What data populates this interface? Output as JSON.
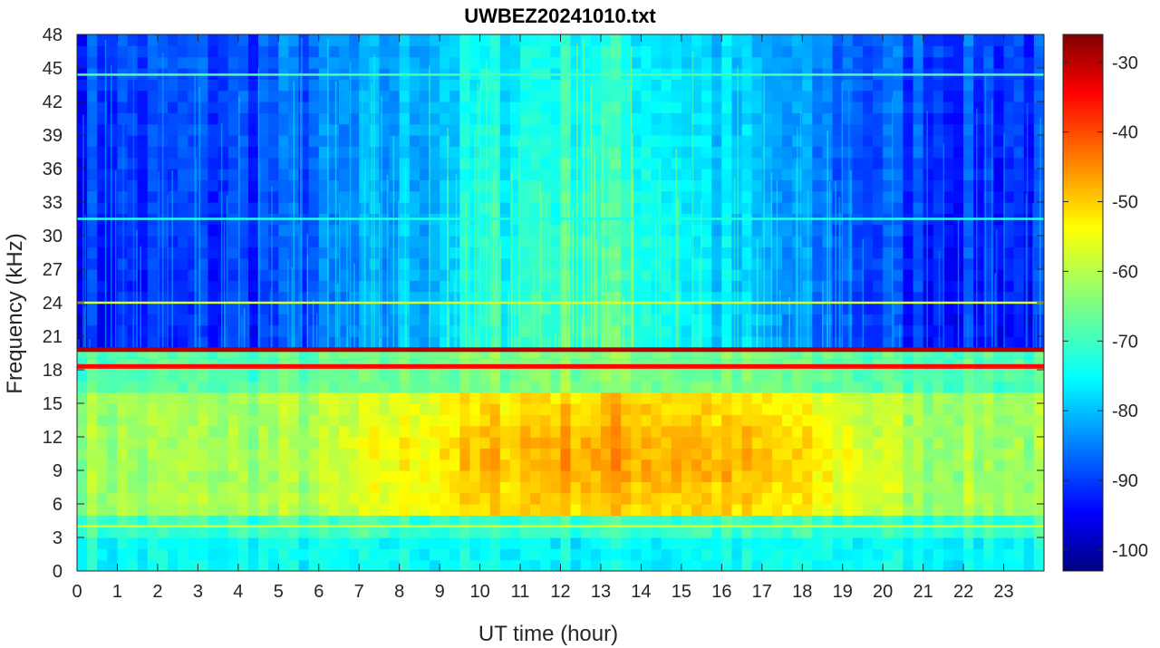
{
  "chart_data": {
    "type": "heatmap",
    "title": "UWBEZ20241010.txt",
    "xlabel": "UT time (hour)",
    "ylabel": "Frequency (kHz)",
    "xlim": [
      0,
      24
    ],
    "ylim": [
      0,
      48
    ],
    "x_ticks": [
      "0",
      "1",
      "2",
      "3",
      "4",
      "5",
      "6",
      "7",
      "8",
      "9",
      "10",
      "11",
      "12",
      "13",
      "14",
      "15",
      "16",
      "17",
      "18",
      "19",
      "20",
      "21",
      "22",
      "23"
    ],
    "y_ticks": [
      "0",
      "3",
      "6",
      "9",
      "12",
      "15",
      "18",
      "21",
      "24",
      "27",
      "30",
      "33",
      "36",
      "39",
      "42",
      "45",
      "48"
    ],
    "colorbar": {
      "colormap": "jet",
      "range": [
        -103,
        -26
      ],
      "ticks": [
        "-30",
        "-40",
        "-50",
        "-60",
        "-70",
        "-80",
        "-90",
        "-100"
      ]
    },
    "features": [
      {
        "kind": "narrowband-line",
        "frequency_khz": 19.8,
        "level_db": -30
      },
      {
        "kind": "narrowband-line",
        "frequency_khz": 18.3,
        "level_db": -36
      },
      {
        "kind": "narrowband-line",
        "frequency_khz": 24.0,
        "level_db": -58
      },
      {
        "kind": "narrowband-line",
        "frequency_khz": 4.0,
        "level_db": -58
      },
      {
        "kind": "narrowband-line",
        "frequency_khz": 44.4,
        "level_db": -68
      },
      {
        "kind": "narrowband-line",
        "frequency_khz": 31.5,
        "level_db": -72
      },
      {
        "kind": "broadband-enhancement",
        "hours": [
          6,
          21
        ],
        "frequency_khz": [
          5,
          16
        ],
        "level_db": -50
      },
      {
        "kind": "background",
        "note": "",
        "level_db_day": -68,
        "level_db_night": -88
      }
    ]
  }
}
